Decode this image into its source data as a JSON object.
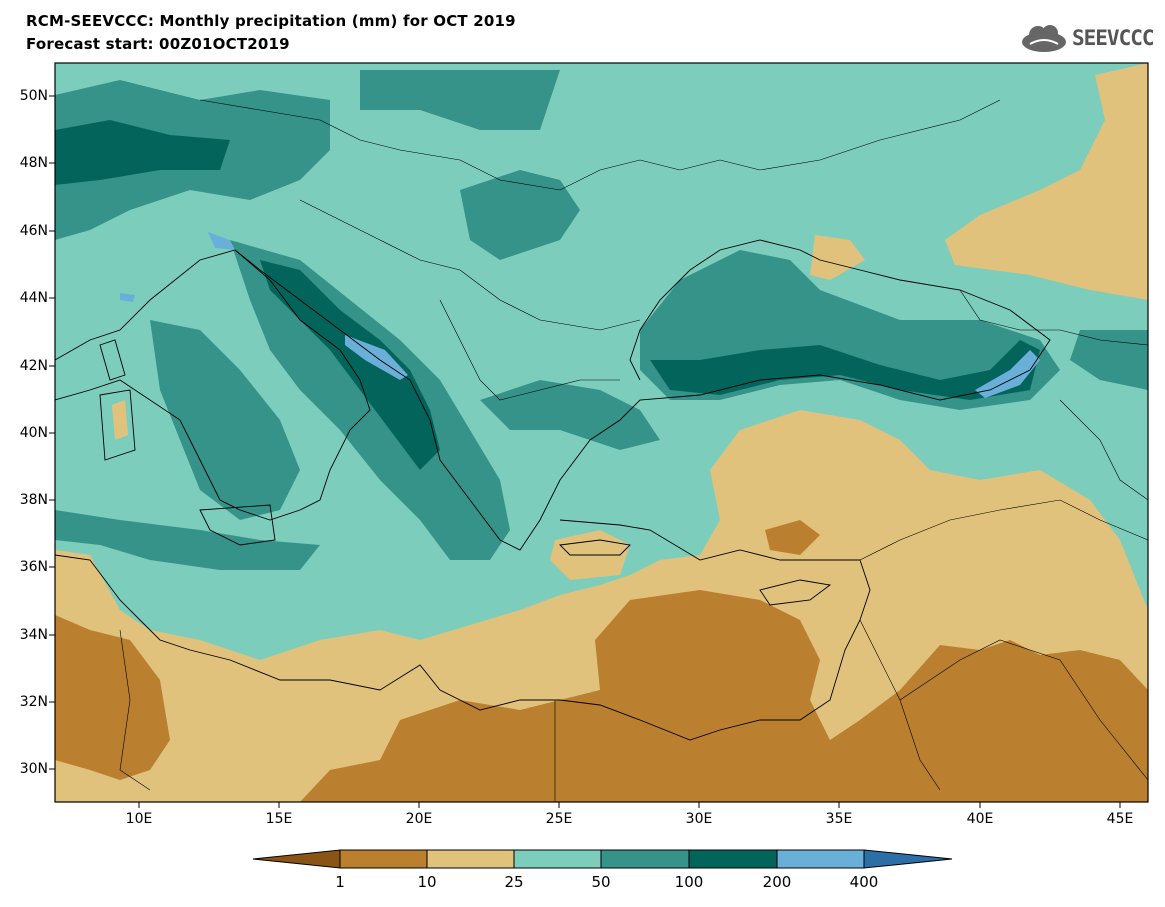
{
  "header": {
    "title": "RCM-SEEVCCC: Monthly precipitation (mm) for OCT 2019",
    "subtitle": "Forecast start: 00Z01OCT2019"
  },
  "logo": {
    "text": "SEEVCCC",
    "icon": "cloud-logo-icon"
  },
  "map": {
    "variable": "Monthly precipitation (mm)",
    "lon_range": [
      7,
      46
    ],
    "lat_range": [
      29,
      51
    ],
    "lat_labels": [
      "50N",
      "48N",
      "46N",
      "44N",
      "42N",
      "40N",
      "38N",
      "36N",
      "34N",
      "32N",
      "30N"
    ],
    "lon_labels": [
      "10E",
      "15E",
      "20E",
      "25E",
      "30E",
      "35E",
      "40E",
      "45E"
    ]
  },
  "colorbar": {
    "levels": [
      "1",
      "10",
      "25",
      "50",
      "100",
      "200",
      "400"
    ],
    "colors": [
      "#8a5414",
      "#bb7f30",
      "#e0c27c",
      "#7dcdbd",
      "#359389",
      "#02645a",
      "#6aafd8",
      "#2c6fa7"
    ]
  }
}
